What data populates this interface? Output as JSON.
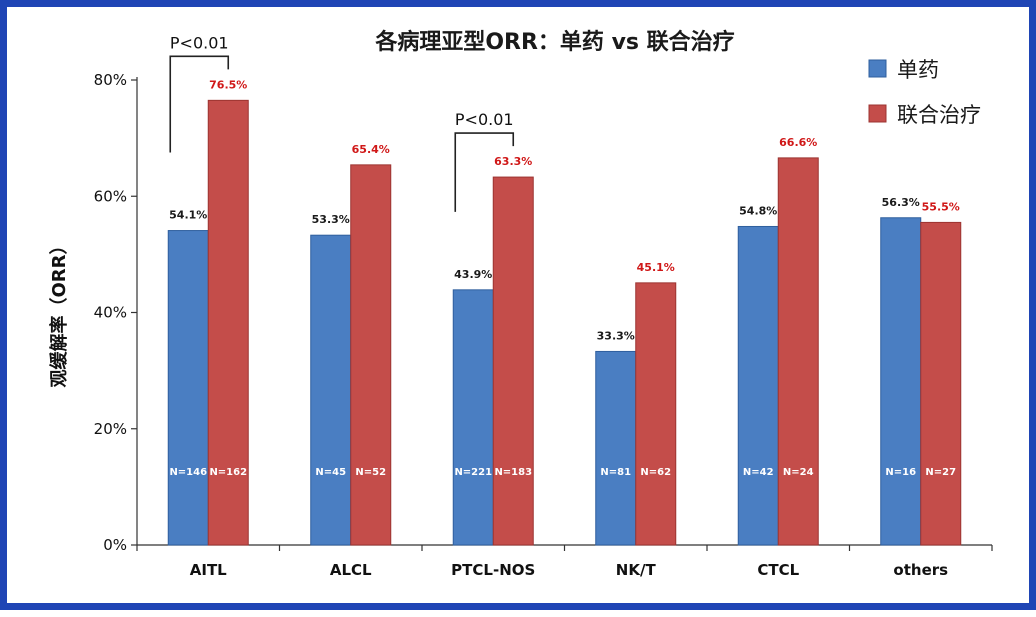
{
  "chart_data": {
    "type": "bar",
    "title": "各病理亚型ORR：单药 vs 联合治疗",
    "ylabel": "观缓解率（ORR）",
    "xlabel": "",
    "ylim": [
      0,
      80
    ],
    "yticks": [
      "0%",
      "20%",
      "40%",
      "60%",
      "80%"
    ],
    "categories": [
      "AITL",
      "ALCL",
      "PTCL-NOS",
      "NK/T",
      "CTCL",
      "others"
    ],
    "series": [
      {
        "name": "单药",
        "color": "#4a7ec2",
        "values": [
          54.1,
          53.3,
          43.9,
          33.3,
          54.8,
          56.3
        ],
        "labels": [
          "54.1%",
          "53.3%",
          "43.9%",
          "33.3%",
          "54.8%",
          "56.3%"
        ],
        "n_labels": [
          "N=146",
          "N=45",
          "N=221",
          "N=81",
          "N=42",
          "N=16"
        ]
      },
      {
        "name": "联合治疗",
        "color": "#c44d4a",
        "values": [
          76.5,
          65.4,
          63.3,
          45.1,
          66.6,
          55.5
        ],
        "labels": [
          "76.5%",
          "65.4%",
          "63.3%",
          "45.1%",
          "66.6%",
          "55.5%"
        ],
        "n_labels": [
          "N=162",
          "N=52",
          "N=183",
          "N=62",
          "N=24",
          "N=27"
        ]
      }
    ],
    "annotations": [
      {
        "text": "P<0.01",
        "category": "AITL"
      },
      {
        "text": "P<0.01",
        "category": "PTCL-NOS"
      }
    ],
    "legend_position": "top-right",
    "grid": false
  }
}
